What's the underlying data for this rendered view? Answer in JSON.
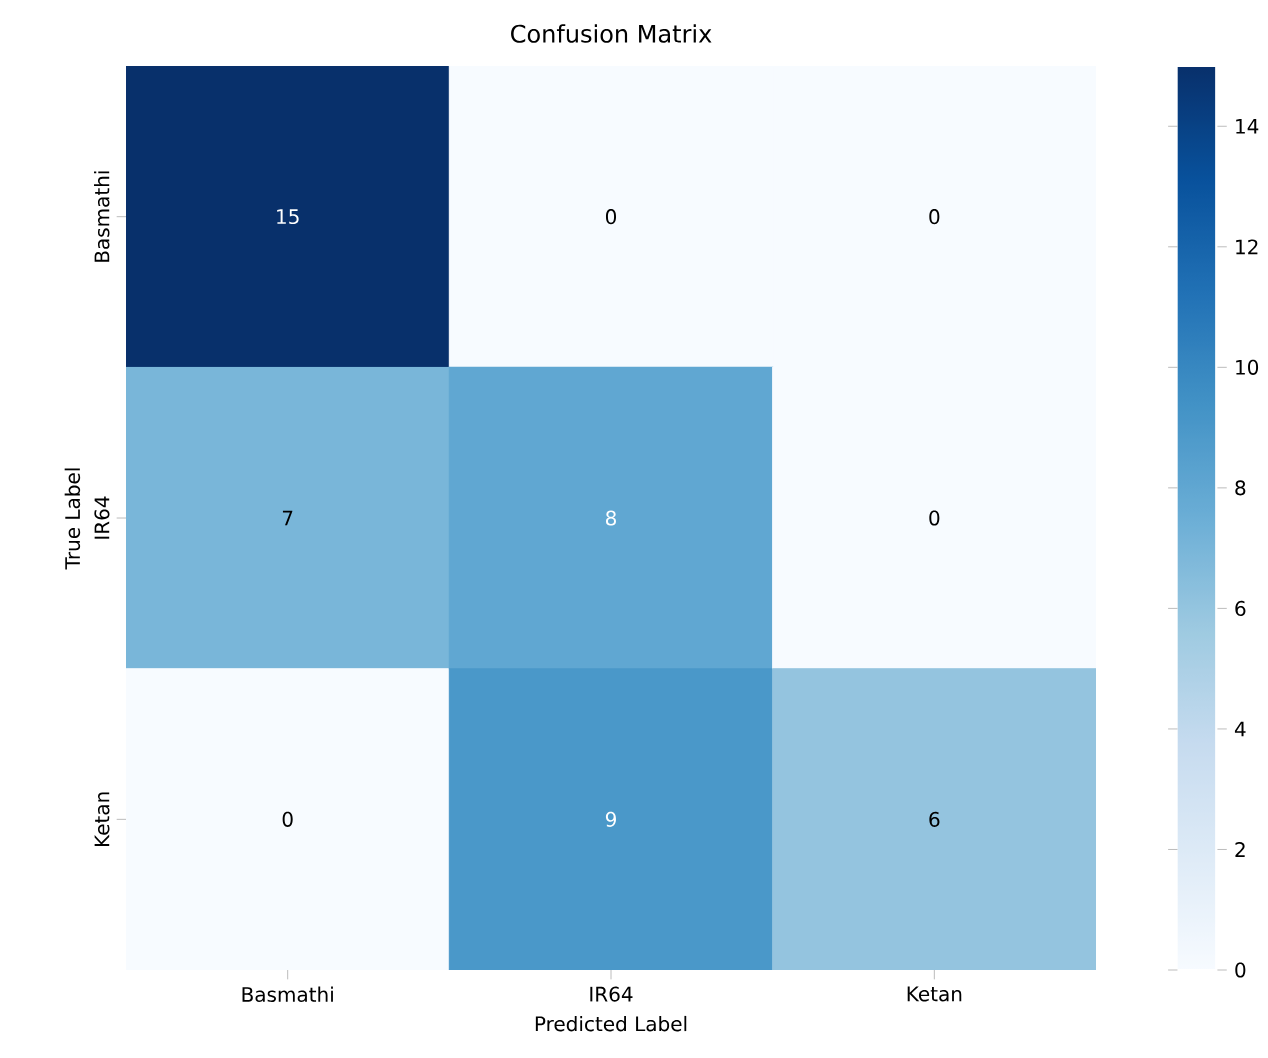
{
  "chart_data": {
    "type": "heatmap",
    "title": "Confusion Matrix",
    "xlabel": "Predicted Label",
    "ylabel": "True Label",
    "categories": [
      "Basmathi",
      "IR64",
      "Ketan"
    ],
    "y_categories": [
      "Basmathi",
      "IR64",
      "Ketan"
    ],
    "cells": [
      [
        15,
        0,
        0
      ],
      [
        7,
        8,
        0
      ],
      [
        0,
        9,
        6
      ]
    ],
    "clim": [
      0,
      15
    ],
    "cticks": [
      0,
      2,
      4,
      6,
      8,
      10,
      12,
      14
    ],
    "data_labels": true
  }
}
